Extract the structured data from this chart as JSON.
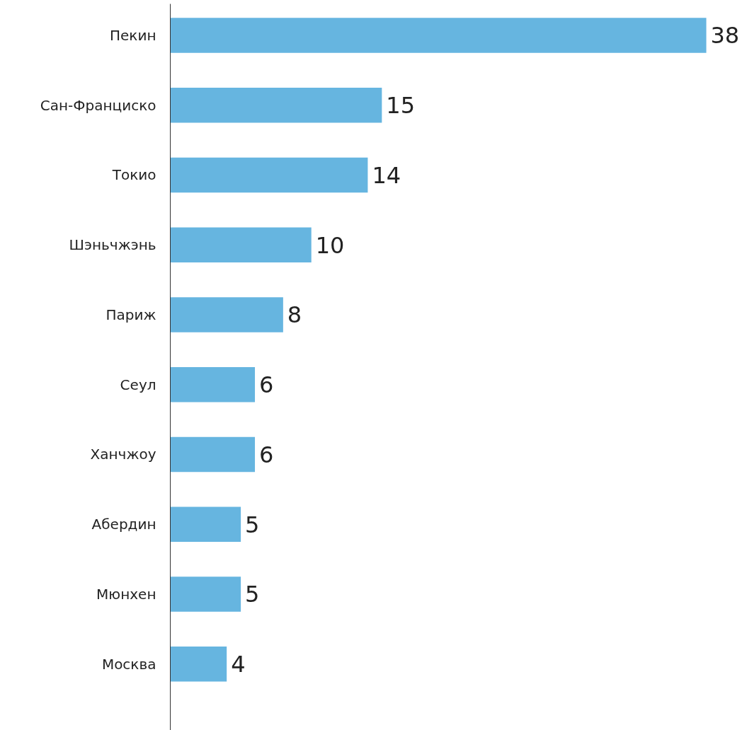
{
  "chart_data": {
    "type": "bar",
    "orientation": "horizontal",
    "categories": [
      "Пекин",
      "Сан-Франциско",
      "Токио",
      "Шэньчжэнь",
      "Париж",
      "Сеул",
      "Ханчжоу",
      "Абердин",
      "Мюнхен",
      "Москва"
    ],
    "values": [
      38,
      15,
      14,
      10,
      8,
      6,
      6,
      5,
      5,
      4
    ],
    "color": "#66b5e0",
    "data_labels": true,
    "grid": false
  }
}
